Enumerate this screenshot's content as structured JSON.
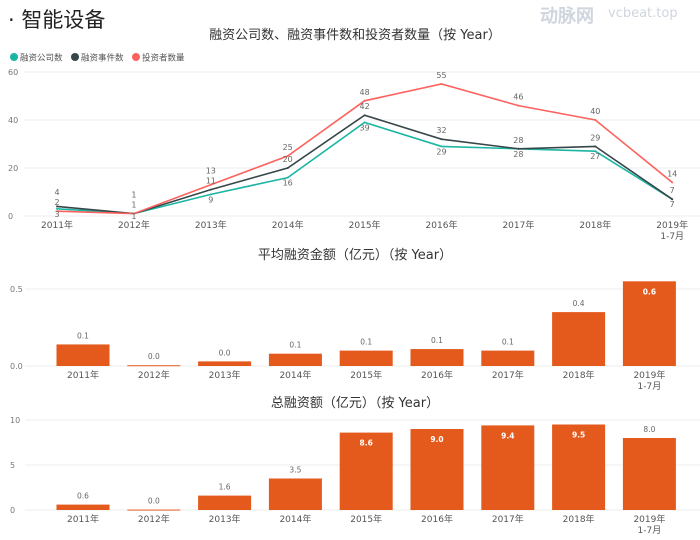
{
  "page_title": "· 智能设备",
  "watermark": {
    "logo": "动脉网",
    "site": "vcbeat.top"
  },
  "colors": {
    "companies": "#1ab5a3",
    "events": "#374649",
    "investors": "#fd625e",
    "bar": "#e35a1c",
    "grid": "#eeeeee",
    "axis_text": "#777777"
  },
  "chart_data": [
    {
      "type": "line",
      "title": "融资公司数、融资事件数和投资者数量（按 Year）",
      "categories": [
        "2011年",
        "2012年",
        "2013年",
        "2014年",
        "2015年",
        "2016年",
        "2017年",
        "2018年",
        "2019年\n1-7月"
      ],
      "ylim": [
        0,
        60
      ],
      "yticks": [
        0,
        20,
        40,
        60
      ],
      "grid": true,
      "legend_position": "top-left",
      "series": [
        {
          "name": "融资公司数",
          "color": "#1ab5a3",
          "values": [
            3,
            1,
            9,
            16,
            39,
            29,
            28,
            27,
            7
          ]
        },
        {
          "name": "融资事件数",
          "color": "#374649",
          "values": [
            4,
            1,
            11,
            20,
            42,
            32,
            28,
            29,
            7
          ]
        },
        {
          "name": "投资者数量",
          "color": "#fd625e",
          "values": [
            2,
            1,
            13,
            25,
            48,
            55,
            46,
            40,
            14
          ]
        }
      ]
    },
    {
      "type": "bar",
      "title": "平均融资金额（亿元）（按 Year）",
      "categories": [
        "2011年",
        "2012年",
        "2013年",
        "2014年",
        "2015年",
        "2016年",
        "2017年",
        "2018年",
        "2019年\n1-7月"
      ],
      "values": [
        0.14,
        0.005,
        0.03,
        0.08,
        0.1,
        0.11,
        0.1,
        0.35,
        0.55
      ],
      "data_labels": [
        "0.1",
        "0.0",
        "0.0",
        "0.1",
        "0.1",
        "0.1",
        "0.1",
        "0.4",
        "0.6"
      ],
      "ylim": [
        0,
        0.55
      ],
      "yticks": [
        "0.0",
        "0.5"
      ],
      "grid": true
    },
    {
      "type": "bar",
      "title": "总融资额（亿元）（按 Year）",
      "categories": [
        "2011年",
        "2012年",
        "2013年",
        "2014年",
        "2015年",
        "2016年",
        "2017年",
        "2018年",
        "2019年\n1-7月"
      ],
      "values": [
        0.6,
        0.05,
        1.6,
        3.5,
        8.6,
        9.0,
        9.4,
        9.5,
        8.0
      ],
      "data_labels": [
        "0.6",
        "0.0",
        "1.6",
        "3.5",
        "8.6",
        "9.0",
        "9.4",
        "9.5",
        "8.0"
      ],
      "ylim": [
        0,
        10
      ],
      "yticks": [
        "0",
        "5",
        "10"
      ],
      "grid": true
    }
  ]
}
